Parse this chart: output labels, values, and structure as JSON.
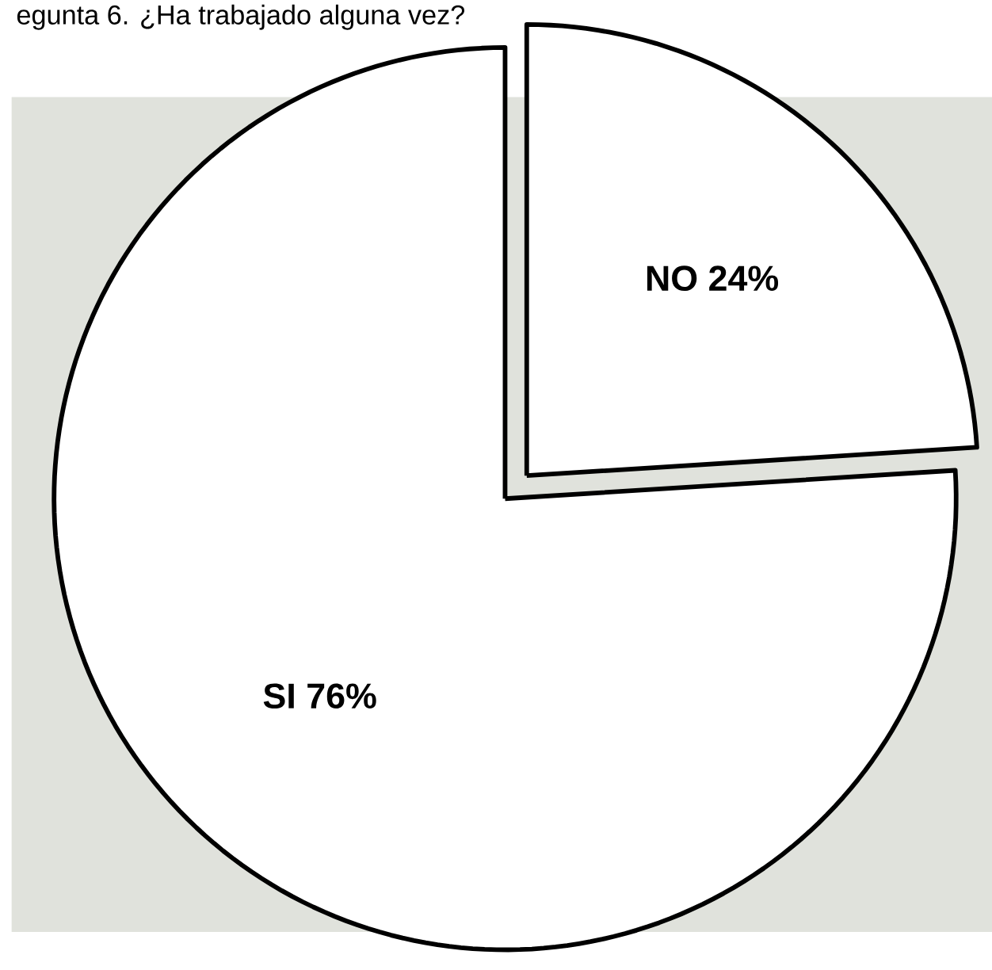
{
  "chart_data": {
    "type": "pie",
    "title": "egunta 6. ¿Ha trabajado alguna vez?",
    "categories": [
      "NO",
      "SI"
    ],
    "values": [
      24,
      76
    ],
    "colors": [
      "#ffffff",
      "#ffffff"
    ],
    "value_labels": [
      "24%",
      "76%"
    ]
  }
}
